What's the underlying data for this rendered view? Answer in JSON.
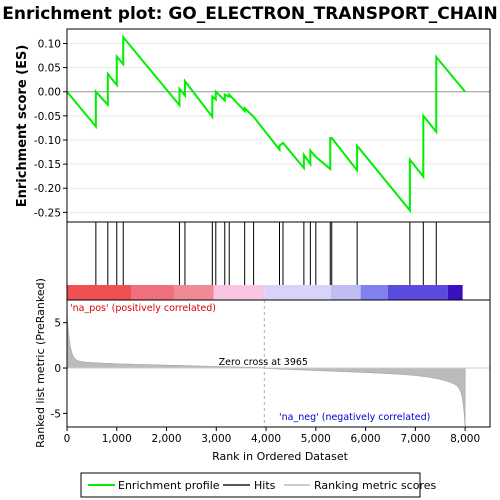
{
  "chart_data": {
    "type": "line",
    "title": "Enrichment plot: GO_ELECTRON_TRANSPORT_CHAIN",
    "es_panel": {
      "ylabel": "Enrichment score (ES)",
      "ylim": [
        -0.27,
        0.13
      ],
      "yticks": [
        0.1,
        0.05,
        0.0,
        -0.05,
        -0.1,
        -0.15,
        -0.2,
        -0.25
      ],
      "ytick_labels": [
        "0.10",
        "0.05",
        "0.00",
        "-0.05",
        "-0.10",
        "-0.15",
        "-0.20",
        "-0.25"
      ],
      "zero_line": true,
      "line_color": "#00ee00"
    },
    "hits": {
      "positions": [
        580,
        820,
        1000,
        1130,
        2260,
        2370,
        2920,
        2990,
        3170,
        3260,
        3570,
        3750,
        4270,
        4340,
        4760,
        4890,
        5000,
        5290,
        5320,
        5830,
        6890,
        7160,
        7420
      ]
    },
    "series": [
      {
        "name": "Enrichment profile",
        "x": [
          0,
          580,
          580,
          820,
          820,
          1000,
          1000,
          1130,
          1130,
          2260,
          2260,
          2370,
          2370,
          2920,
          2920,
          2990,
          2990,
          3170,
          3170,
          3260,
          3260,
          3570,
          3570,
          3750,
          3750,
          4270,
          4270,
          4340,
          4340,
          4760,
          4760,
          4890,
          4890,
          5000,
          5000,
          5290,
          5290,
          5320,
          5320,
          5830,
          5830,
          6890,
          6890,
          7160,
          7160,
          7420,
          7420,
          8000
        ],
        "y": [
          0.0,
          -0.072,
          0.0,
          -0.027,
          0.037,
          0.014,
          0.073,
          0.057,
          0.113,
          -0.028,
          0.006,
          -0.008,
          0.022,
          -0.052,
          -0.01,
          -0.016,
          0.0,
          -0.018,
          -0.006,
          -0.01,
          -0.006,
          -0.04,
          -0.034,
          -0.052,
          -0.052,
          -0.12,
          -0.112,
          -0.106,
          -0.106,
          -0.158,
          -0.131,
          -0.15,
          -0.122,
          -0.135,
          -0.135,
          -0.16,
          -0.096,
          -0.096,
          -0.096,
          -0.163,
          -0.112,
          -0.246,
          -0.141,
          -0.176,
          -0.05,
          -0.083,
          0.072,
          0.0
        ]
      }
    ],
    "ranked_panel": {
      "ylabel": "Ranked list metric (PreRanked)",
      "xlabel": "Rank in Ordered Dataset",
      "xlim": [
        0,
        8500
      ],
      "xticks": [
        0,
        1000,
        2000,
        3000,
        4000,
        5000,
        6000,
        7000,
        8000
      ],
      "xtick_labels": [
        "0",
        "1,000",
        "2,000",
        "3,000",
        "4,000",
        "5,000",
        "6,000",
        "7,000",
        "8,000"
      ],
      "ylim": [
        -6.5,
        7.5
      ],
      "yticks": [
        5,
        0,
        -5
      ],
      "ytick_labels": [
        "5",
        "0",
        "-5"
      ],
      "n_genes": 8000,
      "zero_cross": 3965,
      "zero_cross_label": "Zero cross at 3965",
      "pos_label": "'na_pos' (positively correlated)",
      "neg_label": "'na_neg' (negatively correlated)",
      "pos_color": "#dd0000",
      "neg_color": "#0000cc"
    },
    "color_bar": {
      "segments": [
        {
          "start": 0,
          "end": 1300,
          "color": "#f05050"
        },
        {
          "start": 1300,
          "end": 2150,
          "color": "#f07080"
        },
        {
          "start": 2150,
          "end": 2950,
          "color": "#f08a94"
        },
        {
          "start": 2950,
          "end": 3965,
          "color": "#f8c6e0"
        },
        {
          "start": 3965,
          "end": 5300,
          "color": "#d8d4f8"
        },
        {
          "start": 5300,
          "end": 5900,
          "color": "#c0bcf4"
        },
        {
          "start": 5900,
          "end": 6450,
          "color": "#8080ee"
        },
        {
          "start": 6450,
          "end": 7650,
          "color": "#5a4ade"
        },
        {
          "start": 7650,
          "end": 7950,
          "color": "#3a10c0"
        }
      ]
    },
    "legend": [
      {
        "label": "Enrichment profile",
        "color": "#00ee00"
      },
      {
        "label": "Hits",
        "color": "#555555"
      },
      {
        "label": "Ranking metric scores",
        "color": "#cccccc"
      }
    ]
  }
}
